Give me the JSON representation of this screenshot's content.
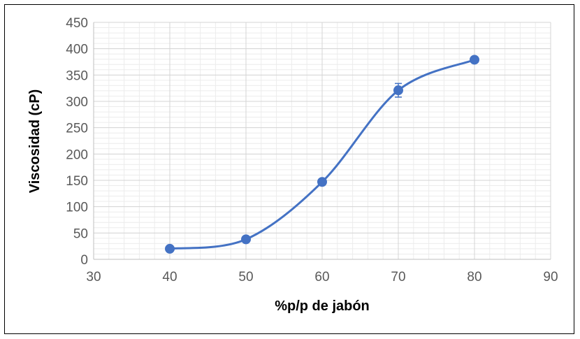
{
  "chart_data": {
    "type": "scatter",
    "xlabel": "%p/p de jabón",
    "ylabel": "Viscosidad (cP)",
    "xlim": [
      30,
      90
    ],
    "ylim": [
      0,
      450
    ],
    "x_ticks": [
      30,
      40,
      50,
      60,
      70,
      80,
      90
    ],
    "y_ticks": [
      0,
      50,
      100,
      150,
      200,
      250,
      300,
      350,
      400,
      450
    ],
    "grid": true,
    "minor_grid": true,
    "smooth_line": true,
    "series": [
      {
        "x": [
          40,
          50,
          60,
          70,
          80
        ],
        "y": [
          20,
          38,
          147,
          321,
          379
        ],
        "error": [
          0,
          4,
          3,
          13,
          0
        ],
        "color": "#4472C4"
      }
    ]
  }
}
